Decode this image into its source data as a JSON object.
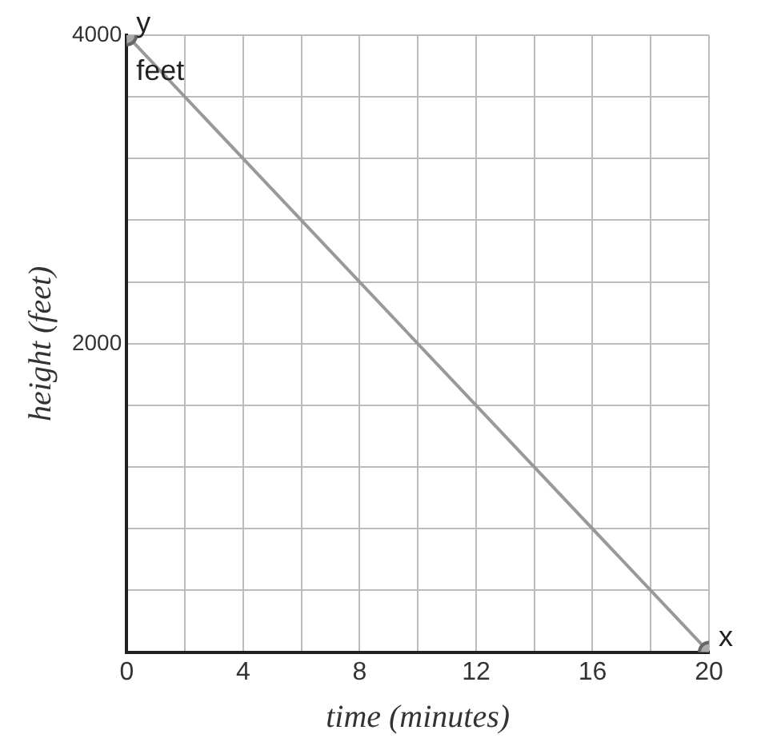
{
  "chart_data": {
    "type": "line",
    "xlabel": "time (minutes)",
    "ylabel": "height (feet)",
    "annotations": [
      "feet",
      "x",
      "y"
    ],
    "x": [
      0,
      20
    ],
    "series": [
      {
        "color": "#999999",
        "values": [
          4000,
          0
        ]
      }
    ],
    "xlim": [
      0,
      20
    ],
    "ylim": [
      0,
      4000
    ],
    "xticks": [
      0,
      {
        "value": 2,
        "label": null
      },
      4,
      {
        "value": 6,
        "label": null
      },
      8,
      {
        "value": 10,
        "label": null
      },
      12,
      {
        "value": 14,
        "label": null
      },
      16,
      {
        "value": 18,
        "label": null
      },
      20
    ],
    "yticks": [
      {
        "value": 0,
        "label": null
      },
      {
        "value": 400,
        "label": null
      },
      {
        "value": 800,
        "label": null
      },
      {
        "value": 1200,
        "label": null
      },
      {
        "value": 1600,
        "label": null
      },
      2000,
      {
        "value": 2400,
        "label": null
      },
      {
        "value": 2800,
        "label": null
      },
      {
        "value": 3200,
        "label": null
      },
      {
        "value": 3600,
        "label": null
      },
      4000
    ],
    "grid": true,
    "legend": false,
    "marker": "circle",
    "line_style": "solid"
  }
}
